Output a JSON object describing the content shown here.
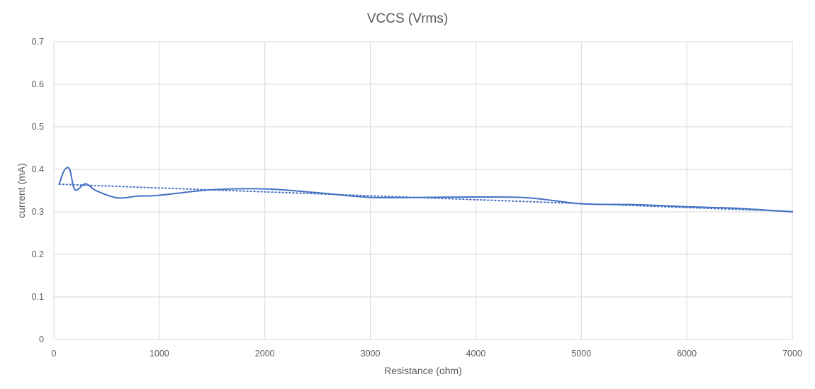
{
  "chart_data": {
    "type": "line",
    "title": "VCCS (Vrms)",
    "xlabel": "Resistance (ohm)",
    "ylabel": "current (mA)",
    "xlim": [
      0,
      7000
    ],
    "ylim": [
      0,
      0.7
    ],
    "x_ticks": [
      0,
      1000,
      2000,
      3000,
      4000,
      5000,
      6000,
      7000
    ],
    "y_ticks": [
      0,
      0.1,
      0.2,
      0.3,
      0.4,
      0.5,
      0.6,
      0.7
    ],
    "x_tick_labels": [
      "0",
      "1000",
      "2000",
      "3000",
      "4000",
      "5000",
      "6000",
      "7000"
    ],
    "y_tick_labels": [
      "0",
      "0.1",
      "0.2",
      "0.3",
      "0.4",
      "0.5",
      "0.6",
      "0.7"
    ],
    "grid": true,
    "legend": "none",
    "series": [
      {
        "style": "solid",
        "color": "#4472c4",
        "smooth": true,
        "points": [
          [
            50,
            0.365
          ],
          [
            100,
            0.398
          ],
          [
            150,
            0.4
          ],
          [
            200,
            0.352
          ],
          [
            300,
            0.366
          ],
          [
            400,
            0.35
          ],
          [
            600,
            0.333
          ],
          [
            800,
            0.337
          ],
          [
            1000,
            0.339
          ],
          [
            1500,
            0.352
          ],
          [
            2000,
            0.354
          ],
          [
            2500,
            0.345
          ],
          [
            3000,
            0.334
          ],
          [
            3500,
            0.334
          ],
          [
            4000,
            0.335
          ],
          [
            4500,
            0.333
          ],
          [
            5000,
            0.319
          ],
          [
            5500,
            0.317
          ],
          [
            6000,
            0.312
          ],
          [
            6500,
            0.308
          ],
          [
            7000,
            0.3
          ]
        ]
      },
      {
        "style": "dotted",
        "color": "#4472c4",
        "type": "linear-trendline",
        "points": [
          [
            50,
            0.365
          ],
          [
            7000,
            0.301
          ]
        ]
      }
    ]
  }
}
